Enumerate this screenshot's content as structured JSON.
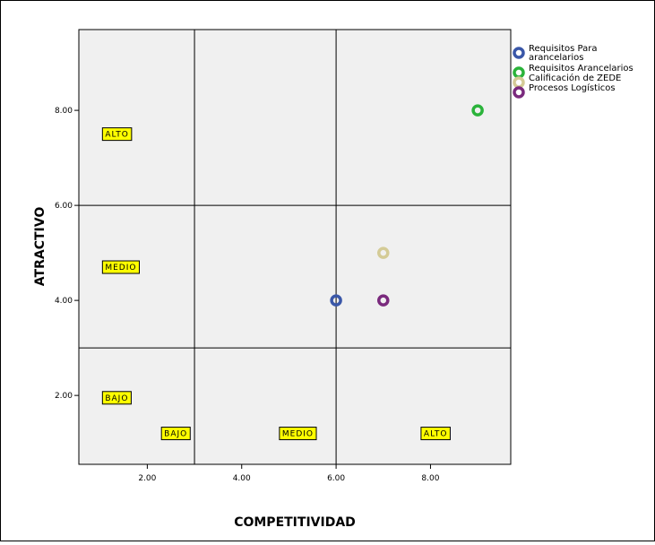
{
  "chart_data": {
    "type": "scatter",
    "xlabel": "COMPETITIVIDAD",
    "ylabel": "ATRACTIVO",
    "xlim": [
      0.55,
      9.7
    ],
    "ylim": [
      0.55,
      9.7
    ],
    "x_ticks": [
      {
        "value": 2.0,
        "label": "2.00"
      },
      {
        "value": 4.0,
        "label": "4.00"
      },
      {
        "value": 6.0,
        "label": "6.00"
      },
      {
        "value": 8.0,
        "label": "8.00"
      }
    ],
    "y_ticks": [
      {
        "value": 2.0,
        "label": "2.00"
      },
      {
        "value": 4.0,
        "label": "4.00"
      },
      {
        "value": 6.0,
        "label": "6.00"
      },
      {
        "value": 8.0,
        "label": "8.00"
      }
    ],
    "vertical_lines": [
      3.0,
      6.0
    ],
    "horizontal_lines": [
      3.0,
      6.0
    ],
    "series": [
      {
        "name_lines": [
          "Requisitos Para",
          "arancelarios"
        ],
        "color": "#3a57a8",
        "x": [
          6.0
        ],
        "y": [
          4.0
        ]
      },
      {
        "name_lines": [
          "Requisitos Arancelarios"
        ],
        "color": "#2ab33a",
        "x": [
          9.0
        ],
        "y": [
          8.0
        ]
      },
      {
        "name_lines": [
          "Calificación de ZEDE"
        ],
        "color": "#d4cb96",
        "x": [
          7.0
        ],
        "y": [
          5.0
        ]
      },
      {
        "name_lines": [
          "Procesos Logísticos"
        ],
        "color": "#7a2a7d",
        "x": [
          7.0
        ],
        "y": [
          4.0
        ]
      }
    ],
    "region_labels": [
      {
        "text": "ALTO",
        "x": 1.05,
        "y": 7.5
      },
      {
        "text": "MEDIO",
        "x": 1.05,
        "y": 4.7
      },
      {
        "text": "BAJO",
        "x": 1.05,
        "y": 1.95
      },
      {
        "text": "BAJO",
        "x": 2.3,
        "y": 1.2
      },
      {
        "text": "MEDIO",
        "x": 4.8,
        "y": 1.2
      },
      {
        "text": "ALTO",
        "x": 7.8,
        "y": 1.2
      }
    ],
    "legend_position": "right",
    "plot_background": "#f0f0f0",
    "label_background": "#ffff00"
  }
}
